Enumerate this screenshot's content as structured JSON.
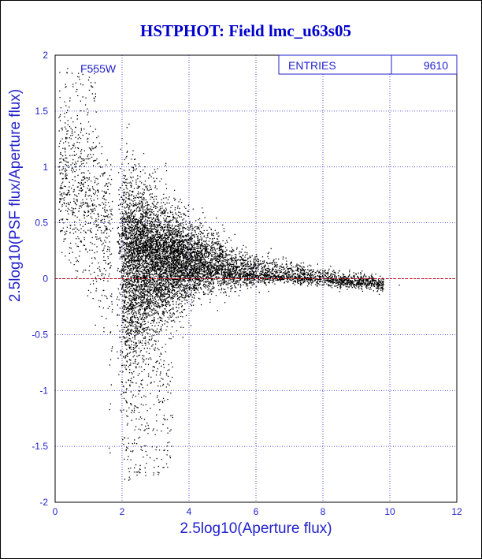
{
  "chart_data": {
    "type": "scatter",
    "title": "HSTPHOT: Field lmc_u63s05",
    "xlabel": "2.5log10(Aperture flux)",
    "ylabel": "2.5log10(PSF flux/Aperture flux)",
    "filter_label": "F555W",
    "stats": {
      "label": "ENTRIES",
      "value": "9610"
    },
    "xlim": [
      0,
      12
    ],
    "ylim": [
      -2,
      2
    ],
    "x_ticks": [
      "0",
      "2",
      "4",
      "6",
      "8",
      "10",
      "12"
    ],
    "y_ticks": [
      "2",
      "1.5",
      "1",
      "0.5",
      "0",
      "-0.5",
      "-1",
      "-1.5",
      "-2"
    ],
    "grid": true,
    "reference_line_y": 0,
    "point_count": 9610,
    "colors": {
      "title": "#0000cc",
      "axis_text": "#2222cc",
      "grid": "#2222cc",
      "points": "#000000",
      "reference_line": "#cc0000"
    }
  }
}
